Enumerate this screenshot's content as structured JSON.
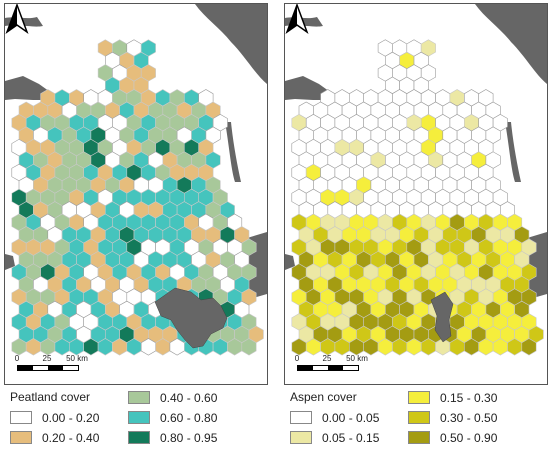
{
  "maps": [
    {
      "legend_title": "Peatland cover",
      "classes": [
        {
          "label": "0.00 - 0.20",
          "color": "#ffffff"
        },
        {
          "label": "0.20 - 0.40",
          "color": "#e6bd7c"
        },
        {
          "label": "0.40 - 0.60",
          "color": "#a8c89a"
        },
        {
          "label": "0.60 - 0.80",
          "color": "#45c4bd"
        },
        {
          "label": "0.80 - 0.95",
          "color": "#137a5a"
        }
      ],
      "scale_labels": [
        "0",
        "25",
        "50 km"
      ]
    },
    {
      "legend_title": "Aspen cover",
      "classes": [
        {
          "label": "0.00 - 0.05",
          "color": "#ffffff"
        },
        {
          "label": "0.05 - 0.15",
          "color": "#ece8a4"
        },
        {
          "label": "0.15 - 0.30",
          "color": "#f5ee3c"
        },
        {
          "label": "0.30 - 0.50",
          "color": "#cfc717"
        },
        {
          "label": "0.50 - 0.90",
          "color": "#a49c12"
        }
      ],
      "scale_labels": [
        "0",
        "25",
        "50 km"
      ]
    }
  ],
  "colors": {
    "water": "#666666",
    "cell_border": "#c8c8c8"
  }
}
